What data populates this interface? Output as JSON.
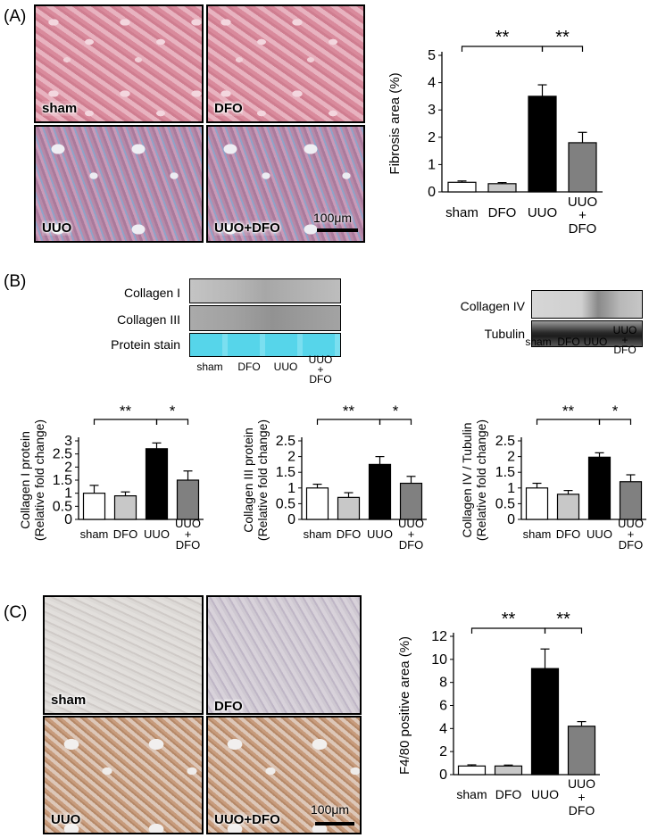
{
  "panels": {
    "a": "(A)",
    "b": "(B)",
    "c": "(C)"
  },
  "micrographs_a": [
    {
      "label": "sham"
    },
    {
      "label": "DFO"
    },
    {
      "label": "UUO"
    },
    {
      "label": "UUO+DFO"
    }
  ],
  "micrographs_c": [
    {
      "label": "sham"
    },
    {
      "label": "DFO"
    },
    {
      "label": "UUO"
    },
    {
      "label": "UUO+DFO"
    }
  ],
  "scale_bar": "100μm",
  "blots_left": {
    "rows": [
      "Collagen I",
      "Collagen III",
      "Protein stain"
    ],
    "lanes": [
      "sham",
      "DFO",
      "UUO",
      "UUO\n+\nDFO"
    ]
  },
  "blots_right": {
    "rows": [
      "Collagen IV",
      "Tubulin"
    ],
    "lanes": [
      "sham",
      "DFO",
      "UUO",
      "UUO\n+\nDFO"
    ]
  },
  "colors": {
    "sham": "#ffffff",
    "DFO": "#c8c8c8",
    "UUO": "#000000",
    "UUO+DFO": "#808080",
    "stain": "#5fd7ea"
  },
  "chart_data": [
    {
      "id": "fibrosis",
      "type": "bar",
      "categories": [
        "sham",
        "DFO",
        "UUO",
        "UUO\n+\nDFO"
      ],
      "values": [
        0.35,
        0.3,
        3.5,
        1.8
      ],
      "errors": [
        0.05,
        0.04,
        0.42,
        0.38
      ],
      "ylabel": "Fibrosis area (%)",
      "ylim": [
        0,
        5
      ],
      "yticks": [
        0,
        1,
        2,
        3,
        4,
        5
      ],
      "significance": [
        {
          "from": 0,
          "to": 2,
          "label": "**"
        },
        {
          "from": 2,
          "to": 3,
          "label": "**"
        }
      ]
    },
    {
      "id": "col1",
      "type": "bar",
      "categories": [
        "sham",
        "DFO",
        "UUO",
        "UUO\n+\nDFO"
      ],
      "values": [
        1.0,
        0.9,
        2.7,
        1.5
      ],
      "errors": [
        0.3,
        0.15,
        0.22,
        0.35
      ],
      "ylabel": "Collagen I  protein\n(Relative fold change)",
      "ylim": [
        0,
        3
      ],
      "yticks": [
        0,
        0.5,
        1,
        1.5,
        2,
        2.5,
        3
      ],
      "significance": [
        {
          "from": 0,
          "to": 2,
          "label": "**"
        },
        {
          "from": 2,
          "to": 3,
          "label": "*"
        }
      ]
    },
    {
      "id": "col3",
      "type": "bar",
      "categories": [
        "sham",
        "DFO",
        "UUO",
        "UUO\n+\nDFO"
      ],
      "values": [
        1.0,
        0.7,
        1.75,
        1.15
      ],
      "errors": [
        0.12,
        0.15,
        0.25,
        0.22
      ],
      "ylabel": "Collagen III protein\n(Relative fold change)",
      "ylim": [
        0,
        2.5
      ],
      "yticks": [
        0,
        0.5,
        1,
        1.5,
        2,
        2.5
      ],
      "significance": [
        {
          "from": 0,
          "to": 2,
          "label": "**"
        },
        {
          "from": 2,
          "to": 3,
          "label": "*"
        }
      ]
    },
    {
      "id": "col4",
      "type": "bar",
      "categories": [
        "sham",
        "DFO",
        "UUO",
        "UUO\n+\nDFO"
      ],
      "values": [
        1.0,
        0.8,
        1.98,
        1.2
      ],
      "errors": [
        0.15,
        0.12,
        0.14,
        0.22
      ],
      "ylabel": "Collagen IV / Tubulin\n(Relative fold change)",
      "ylim": [
        0,
        2.5
      ],
      "yticks": [
        0,
        0.5,
        1,
        1.5,
        2,
        2.5
      ],
      "significance": [
        {
          "from": 0,
          "to": 2,
          "label": "**"
        },
        {
          "from": 2,
          "to": 3,
          "label": "*"
        }
      ]
    },
    {
      "id": "f480",
      "type": "bar",
      "categories": [
        "sham",
        "DFO",
        "UUO",
        "UUO\n+\nDFO"
      ],
      "values": [
        0.75,
        0.75,
        9.2,
        4.2
      ],
      "errors": [
        0.1,
        0.08,
        1.7,
        0.4
      ],
      "ylabel": "F4/80 positive area (%)",
      "ylim": [
        0,
        12
      ],
      "yticks": [
        0,
        2,
        4,
        6,
        8,
        10,
        12
      ],
      "significance": [
        {
          "from": 0,
          "to": 2,
          "label": "**"
        },
        {
          "from": 2,
          "to": 3,
          "label": "**"
        }
      ]
    }
  ]
}
